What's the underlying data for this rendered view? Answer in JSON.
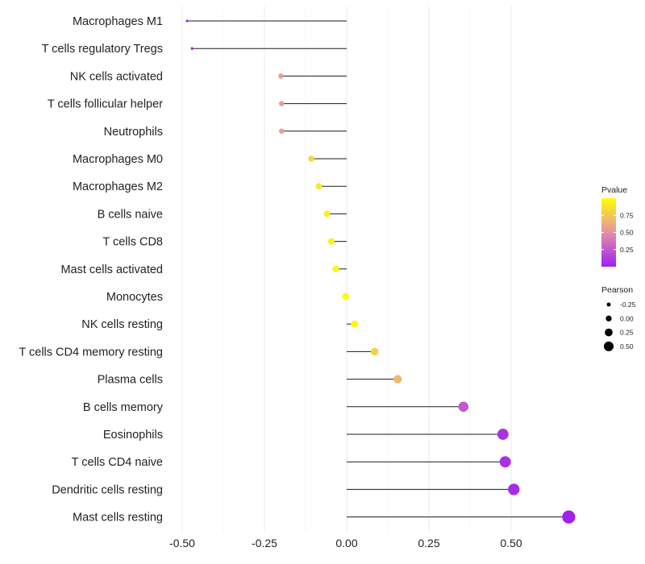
{
  "chart_data": {
    "type": "lollipop",
    "x": {
      "ticks": [
        -0.5,
        -0.25,
        0.0,
        0.25,
        0.5
      ],
      "tick_labels": [
        "-0.50",
        "-0.25",
        "0.00",
        "0.25",
        "0.50"
      ],
      "range": [
        -0.535,
        0.675
      ]
    },
    "categories": [
      "Macrophages M1",
      "T cells regulatory  Tregs ",
      "NK cells activated",
      "T cells follicular helper",
      "Neutrophils",
      "Macrophages M0",
      "Macrophages M2",
      "B cells naive",
      "T cells CD8",
      "Mast cells activated",
      "Monocytes",
      "NK cells resting",
      "T cells CD4 memory resting",
      "Plasma cells",
      "B cells memory",
      "Eosinophils",
      "T cells CD4 naive",
      "Dendritic cells resting",
      "Mast cells resting"
    ],
    "pearson": [
      -0.485,
      -0.47,
      -0.2,
      -0.198,
      -0.198,
      -0.108,
      -0.085,
      -0.06,
      -0.047,
      -0.033,
      -0.003,
      0.024,
      0.085,
      0.155,
      0.355,
      0.475,
      0.482,
      0.508,
      0.675
    ],
    "pvalue": [
      0.01,
      0.02,
      0.55,
      0.55,
      0.55,
      0.82,
      0.88,
      0.93,
      0.95,
      0.97,
      0.99,
      0.97,
      0.8,
      0.68,
      0.25,
      0.08,
      0.07,
      0.05,
      0.0
    ],
    "legend_pvalue": {
      "title": "Pvalue",
      "ticks": [
        0.25,
        0.5,
        0.75
      ],
      "tick_labels": [
        "0.25",
        "0.50",
        "0.75"
      ],
      "range": [
        0,
        1
      ],
      "low_color": "#a020f0",
      "mid_color": "#e491a8",
      "high_color": "#ffff00"
    },
    "legend_pearson": {
      "title": "Pearson",
      "values": [
        -0.25,
        0.0,
        0.25,
        0.5
      ],
      "labels": [
        "-0.25",
        "0.00",
        "0.25",
        "0.50"
      ]
    },
    "legend_position": "right"
  }
}
